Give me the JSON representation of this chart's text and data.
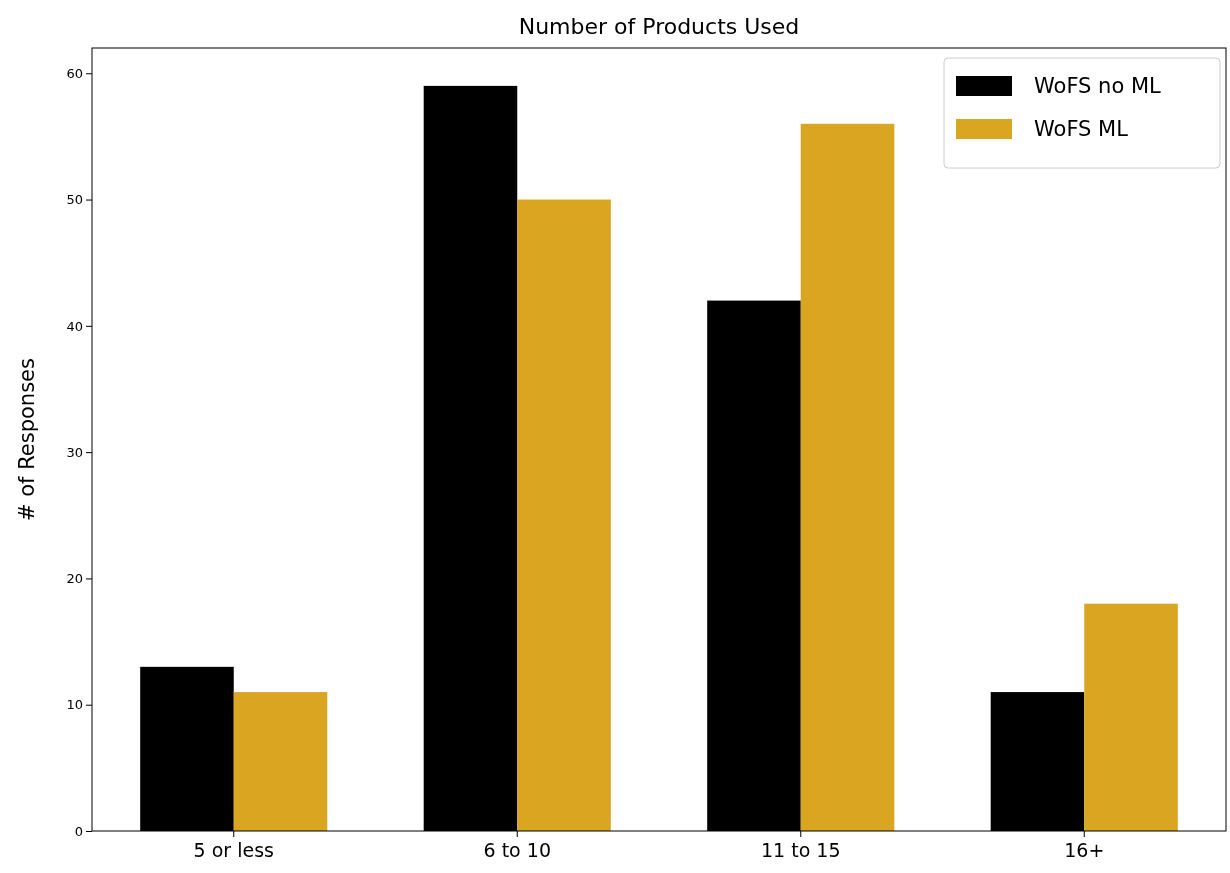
{
  "chart_data": {
    "type": "bar",
    "title": "Number of Products Used",
    "ylabel": "# of Responses",
    "categories": [
      "5 or less",
      "6 to 10",
      "11 to 15",
      "16+"
    ],
    "series": [
      {
        "name": "WoFS no ML",
        "color": "#000000",
        "values": [
          13,
          59,
          42,
          11
        ]
      },
      {
        "name": "WoFS ML",
        "color": "#daa520",
        "values": [
          11,
          50,
          56,
          18
        ]
      }
    ],
    "ylim": [
      0,
      62
    ],
    "yticks": [
      0,
      10,
      20,
      30,
      40,
      50,
      60
    ],
    "grid": false,
    "legend": "top right"
  }
}
